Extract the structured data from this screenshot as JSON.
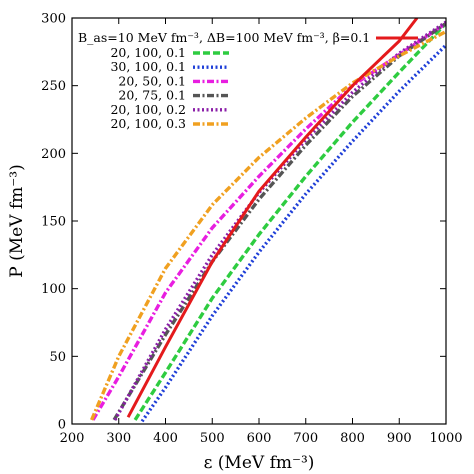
{
  "chart_data": {
    "type": "line",
    "xlabel": "ε (MeV fm⁻³)",
    "ylabel": "P (MeV fm⁻³)",
    "xlim": [
      200,
      1000
    ],
    "ylim": [
      0,
      300
    ],
    "xticks": [
      200,
      300,
      400,
      500,
      600,
      700,
      800,
      900,
      1000
    ],
    "yticks": [
      0,
      50,
      100,
      150,
      200,
      250,
      300
    ],
    "grid": false,
    "legend_position": "top-left",
    "series": [
      {
        "name": "B_as=10 MeV fm⁻³, ΔB=100 MeV fm⁻³, β=0.1",
        "color": "#e41a1c",
        "style": "solid",
        "x": [
          320,
          400,
          500,
          600,
          700,
          800,
          900,
          938
        ],
        "y": [
          5,
          57,
          120,
          172,
          212,
          250,
          283,
          300
        ]
      },
      {
        "name": "20, 100, 0.1",
        "color": "#2ecc40",
        "style": "dashed",
        "x": [
          335,
          400,
          500,
          600,
          700,
          800,
          900,
          1000
        ],
        "y": [
          3,
          38,
          93,
          140,
          183,
          223,
          260,
          296
        ]
      },
      {
        "name": "30, 100, 0.1",
        "color": "#1f3fd8",
        "style": "dotted",
        "x": [
          350,
          400,
          500,
          600,
          700,
          800,
          900,
          1000
        ],
        "y": [
          2,
          27,
          80,
          127,
          170,
          209,
          246,
          280
        ]
      },
      {
        "name": "20, 50, 0.1",
        "color": "#e81ee0",
        "style": "dashdot",
        "x": [
          245,
          300,
          400,
          500,
          600,
          700,
          800,
          900,
          1000
        ],
        "y": [
          3,
          35,
          97,
          145,
          183,
          218,
          250,
          273,
          296
        ]
      },
      {
        "name": "20, 75, 0.1",
        "color": "#555555",
        "style": "dashdot",
        "x": [
          290,
          400,
          500,
          600,
          700,
          800,
          900,
          1000
        ],
        "y": [
          3,
          66,
          120,
          166,
          206,
          242,
          272,
          296
        ]
      },
      {
        "name": "20, 100, 0.2",
        "color": "#8b1fa8",
        "style": "dotted",
        "x": [
          292,
          400,
          500,
          600,
          700,
          800,
          900,
          1000
        ],
        "y": [
          3,
          70,
          125,
          171,
          210,
          245,
          274,
          297
        ]
      },
      {
        "name": "20, 100, 0.3",
        "color": "#f0a020",
        "style": "dashdot",
        "x": [
          242,
          300,
          400,
          500,
          600,
          700,
          800,
          900,
          1000
        ],
        "y": [
          3,
          50,
          115,
          162,
          197,
          226,
          252,
          272,
          290
        ]
      }
    ]
  },
  "legend": {
    "entries": [
      {
        "label": "20, 100, 0.1"
      },
      {
        "label": "30, 100, 0.1"
      },
      {
        "label": "20, 50, 0.1"
      },
      {
        "label": "20, 75, 0.1"
      },
      {
        "label": "20, 100, 0.2"
      },
      {
        "label": "20, 100, 0.3"
      }
    ]
  }
}
